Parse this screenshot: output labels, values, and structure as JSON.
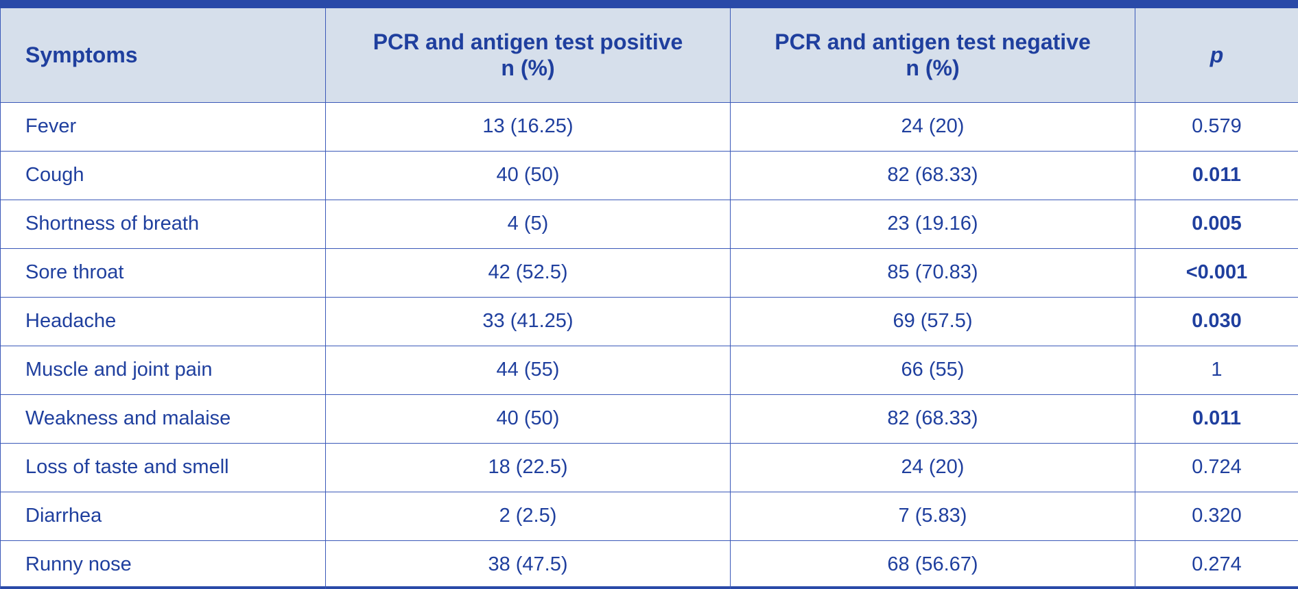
{
  "table": {
    "headers": {
      "symptoms": "Symptoms",
      "positive_line1": "PCR and antigen test positive",
      "positive_line2": "n (%)",
      "negative_line1": "PCR and antigen test negative",
      "negative_line2": "n (%)",
      "p": "p"
    },
    "rows": [
      {
        "symptom": "Fever",
        "positive": "13 (16.25)",
        "negative": "24 (20)",
        "p": "0.579",
        "significant": false
      },
      {
        "symptom": "Cough",
        "positive": "40 (50)",
        "negative": "82 (68.33)",
        "p": "0.011",
        "significant": true
      },
      {
        "symptom": "Shortness of breath",
        "positive": "4 (5)",
        "negative": "23 (19.16)",
        "p": "0.005",
        "significant": true
      },
      {
        "symptom": "Sore throat",
        "positive": "42 (52.5)",
        "negative": "85 (70.83)",
        "p": "<0.001",
        "significant": true
      },
      {
        "symptom": "Headache",
        "positive": "33 (41.25)",
        "negative": "69 (57.5)",
        "p": "0.030",
        "significant": true
      },
      {
        "symptom": "Muscle and joint pain",
        "positive": "44 (55)",
        "negative": "66 (55)",
        "p": "1",
        "significant": false
      },
      {
        "symptom": "Weakness and malaise",
        "positive": "40 (50)",
        "negative": "82 (68.33)",
        "p": "0.011",
        "significant": true
      },
      {
        "symptom": "Loss of taste and smell",
        "positive": "18 (22.5)",
        "negative": "24 (20)",
        "p": "0.724",
        "significant": false
      },
      {
        "symptom": "Diarrhea",
        "positive": "2 (2.5)",
        "negative": "7 (5.83)",
        "p": "0.320",
        "significant": false
      },
      {
        "symptom": "Runny nose",
        "positive": "38 (47.5)",
        "negative": "68 (56.67)",
        "p": "0.274",
        "significant": false
      }
    ]
  },
  "colors": {
    "text": "#1f3f9e",
    "border": "#3a58b8",
    "header_bg": "#d6dfeb",
    "rule": "#2a4aa8"
  }
}
